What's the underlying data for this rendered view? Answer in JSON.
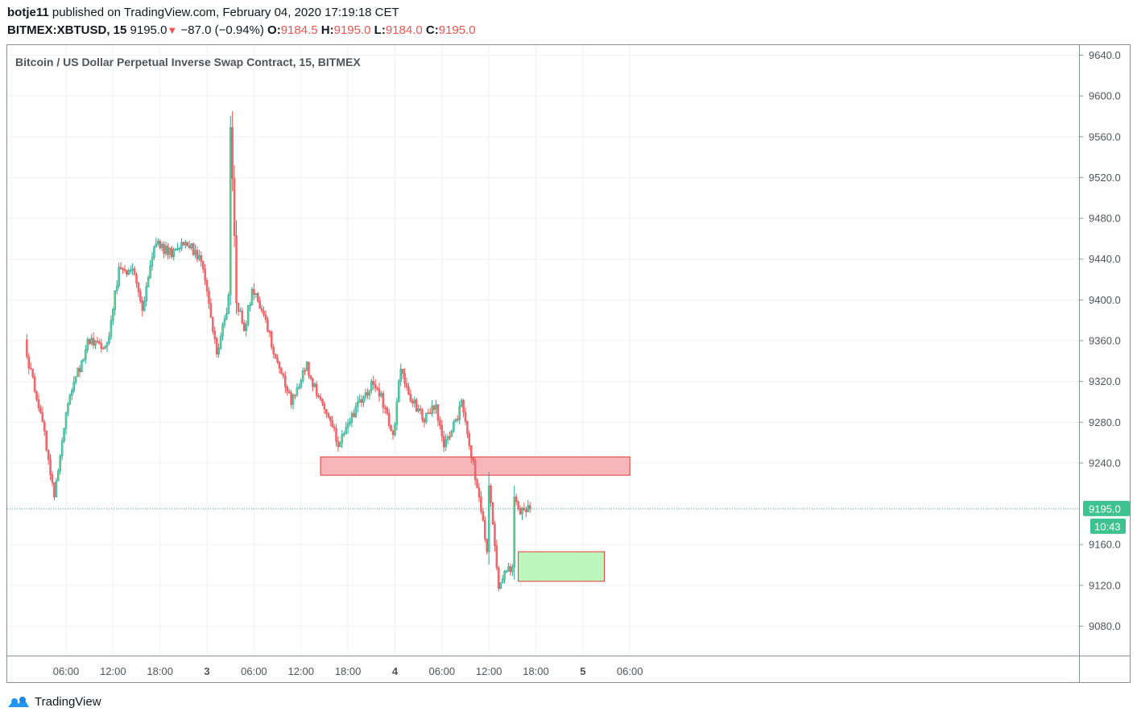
{
  "header": {
    "author": "botje11",
    "published_text": "published on TradingView.com, February 04, 2020 17:19:18 CET",
    "symbol": "BITMEX:XBTUSD, 15",
    "last": "9195.0",
    "change": "−87.0 (−0.94%)",
    "open_label": "O:",
    "open": "9184.5",
    "high_label": "H:",
    "high": "9195.0",
    "low_label": "L:",
    "low": "9184.0",
    "close_label": "C:",
    "close": "9195.0"
  },
  "price_tag": {
    "price": "9195.0",
    "countdown": "10:43"
  },
  "brand": {
    "name": "TradingView"
  },
  "colors": {
    "up": "#26a69a",
    "up_fill": "#5fcf95",
    "down": "#ef5350",
    "down_fill": "#ee6a78",
    "supply_zone": "#f7b6b9",
    "demand_zone": "#bdf7bd",
    "price_tag": "#3ec28f"
  },
  "chart_data": {
    "type": "candlestick",
    "title": "Bitcoin / US Dollar Perpetual Inverse Swap Contract, 15, BITMEX",
    "interval": "15",
    "x_ticks": [
      "06:00",
      "12:00",
      "18:00",
      "3",
      "06:00",
      "12:00",
      "18:00",
      "4",
      "06:00",
      "12:00",
      "18:00",
      "5",
      "06:00"
    ],
    "y_ticks": [
      "9640.0",
      "9600.0",
      "9560.0",
      "9520.0",
      "9480.0",
      "9440.0",
      "9400.0",
      "9360.0",
      "9320.0",
      "9280.0",
      "9240.0",
      "9160.0",
      "9120.0",
      "9080.0"
    ],
    "ylim": [
      9066,
      9650
    ],
    "last_price": 9195.0,
    "zones": [
      {
        "type": "supply",
        "from": "Feb 3 14:30",
        "to": "Feb 5 06:00",
        "price_low": 9228,
        "price_high": 9246
      },
      {
        "type": "demand",
        "from": "Feb 4 15:45",
        "to": "Feb 5 02:45",
        "price_low": 9124,
        "price_high": 9153
      }
    ],
    "anchors": [
      {
        "time": "Feb 2 01:00",
        "close": 9355
      },
      {
        "time": "Feb 2 03:30",
        "close": 9270
      },
      {
        "time": "Feb 2 04:45",
        "close": 9207
      },
      {
        "time": "Feb 2 06:30",
        "close": 9300
      },
      {
        "time": "Feb 2 09:15",
        "close": 9362
      },
      {
        "time": "Feb 2 11:30",
        "close": 9355
      },
      {
        "time": "Feb 2 13:00",
        "close": 9430
      },
      {
        "time": "Feb 2 15:00",
        "close": 9425
      },
      {
        "time": "Feb 2 16:00",
        "close": 9390
      },
      {
        "time": "Feb 2 17:30",
        "close": 9455
      },
      {
        "time": "Feb 2 20:00",
        "close": 9445
      },
      {
        "time": "Feb 2 21:30",
        "close": 9460
      },
      {
        "time": "Feb 2 23:30",
        "close": 9438
      },
      {
        "time": "Feb 3 00:30",
        "close": 9395
      },
      {
        "time": "Feb 3 01:30",
        "close": 9345
      },
      {
        "time": "Feb 3 03:00",
        "close": 9400
      },
      {
        "time": "Feb 3 03:15",
        "close": 9565
      },
      {
        "time": "Feb 3 03:30",
        "close": 9520
      },
      {
        "time": "Feb 3 04:00",
        "close": 9400
      },
      {
        "time": "Feb 3 05:00",
        "close": 9370
      },
      {
        "time": "Feb 3 06:00",
        "close": 9410
      },
      {
        "time": "Feb 3 07:00",
        "close": 9395
      },
      {
        "time": "Feb 3 09:00",
        "close": 9345
      },
      {
        "time": "Feb 3 11:00",
        "close": 9300
      },
      {
        "time": "Feb 3 13:00",
        "close": 9335
      },
      {
        "time": "Feb 3 15:00",
        "close": 9295
      },
      {
        "time": "Feb 3 17:00",
        "close": 9260
      },
      {
        "time": "Feb 3 19:00",
        "close": 9290
      },
      {
        "time": "Feb 3 21:30",
        "close": 9320
      },
      {
        "time": "Feb 3 23:00",
        "close": 9295
      },
      {
        "time": "Feb 4 00:00",
        "close": 9265
      },
      {
        "time": "Feb 4 01:00",
        "close": 9335
      },
      {
        "time": "Feb 4 02:00",
        "close": 9305
      },
      {
        "time": "Feb 4 04:00",
        "close": 9285
      },
      {
        "time": "Feb 4 05:30",
        "close": 9295
      },
      {
        "time": "Feb 4 06:30",
        "close": 9255
      },
      {
        "time": "Feb 4 08:00",
        "close": 9280
      },
      {
        "time": "Feb 4 08:45",
        "close": 9300
      },
      {
        "time": "Feb 4 09:45",
        "close": 9255
      },
      {
        "time": "Feb 4 11:00",
        "close": 9210
      },
      {
        "time": "Feb 4 12:00",
        "close": 9150
      },
      {
        "time": "Feb 4 12:15",
        "close": 9220
      },
      {
        "time": "Feb 4 13:30",
        "close": 9120
      },
      {
        "time": "Feb 4 14:45",
        "close": 9135
      },
      {
        "time": "Feb 4 15:15",
        "close": 9140
      },
      {
        "time": "Feb 4 15:30",
        "close": 9205
      },
      {
        "time": "Feb 4 16:15",
        "close": 9190
      },
      {
        "time": "Feb 4 17:15",
        "close": 9195
      }
    ]
  }
}
